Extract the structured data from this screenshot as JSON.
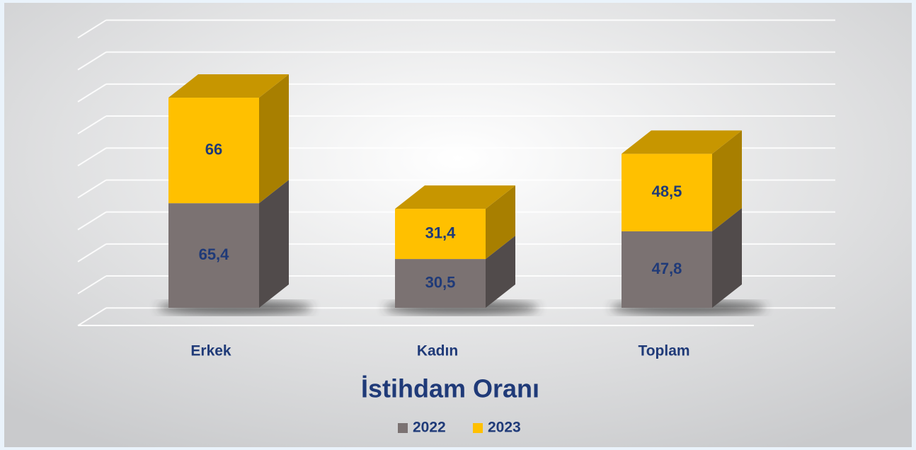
{
  "chart_data": {
    "type": "bar3d_stacked",
    "title": "İstihdam Oranı",
    "categories": [
      "Erkek",
      "Kadın",
      "Toplam"
    ],
    "series": [
      {
        "name": "2022",
        "color": "#7b7272",
        "values": [
          65.4,
          30.5,
          47.8
        ],
        "value_labels": [
          "65,4",
          "30,5",
          "47,8"
        ]
      },
      {
        "name": "2023",
        "color": "#ffc000",
        "values": [
          66,
          31.4,
          48.5
        ],
        "value_labels": [
          "66",
          "31,4",
          "48,5"
        ]
      }
    ],
    "ylim": [
      0,
      180
    ],
    "yticks": [
      0,
      20,
      40,
      60,
      80,
      100,
      120,
      140,
      160,
      180
    ],
    "grid": true
  }
}
